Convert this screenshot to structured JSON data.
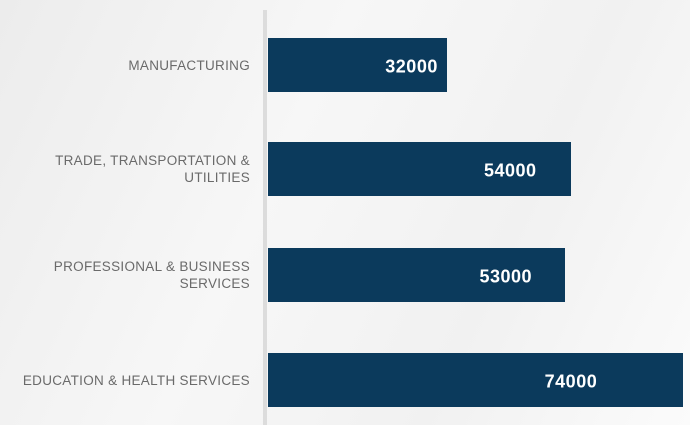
{
  "chart_data": {
    "type": "bar",
    "orientation": "horizontal",
    "categories": [
      "MANUFACTURING",
      "TRADE, TRANSPORTATION & UTILITIES",
      "PROFESSIONAL & BUSINESS SERVICES",
      "EDUCATION & HEALTH SERVICES"
    ],
    "values": [
      32000,
      54000,
      53000,
      74000
    ],
    "color": "#0b3a5c"
  }
}
